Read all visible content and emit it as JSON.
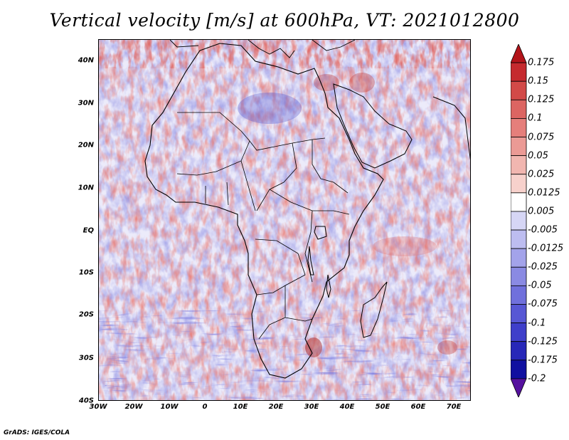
{
  "title": "Vertical velocity [m/s] at 600hPa, VT: 2021012800",
  "credit": "GrADS: IGES/COLA",
  "map": {
    "lat_labels": [
      "40N",
      "30N",
      "20N",
      "10N",
      "EQ",
      "10S",
      "20S",
      "30S",
      "40S"
    ],
    "lon_labels": [
      "30W",
      "20W",
      "10W",
      "0",
      "10E",
      "20E",
      "30E",
      "40E",
      "50E",
      "60E",
      "70E"
    ]
  },
  "colorbar": {
    "labels": [
      "0.175",
      "0.15",
      "0.125",
      "0.1",
      "0.075",
      "0.05",
      "0.025",
      "0.0125",
      "0.005",
      "-0.005",
      "-0.0125",
      "-0.025",
      "-0.05",
      "-0.075",
      "-0.1",
      "-0.125",
      "-0.175",
      "-0.2"
    ],
    "colors": [
      "#b3141a",
      "#c52a2e",
      "#d24a48",
      "#dc6562",
      "#e57f7b",
      "#eb9a95",
      "#f1b6b0",
      "#f7d1cc",
      "#ffffff",
      "#d6d6f5",
      "#bdbdf0",
      "#a3a3ea",
      "#8a8ae3",
      "#7070dc",
      "#5757d4",
      "#3f3fca",
      "#2727b8",
      "#1010a0",
      "#55119e"
    ]
  }
}
